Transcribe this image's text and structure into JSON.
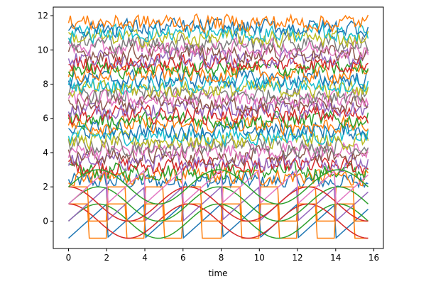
{
  "chart_data": {
    "type": "line",
    "title": "",
    "xlabel": "time",
    "ylabel": "",
    "xlim": [
      -0.8,
      16.5
    ],
    "ylim": [
      -1.6,
      12.5
    ],
    "xticks": [
      0,
      2,
      4,
      6,
      8,
      10,
      12,
      14,
      16
    ],
    "yticks": [
      0,
      2,
      4,
      6,
      8,
      10,
      12
    ],
    "grid": false,
    "legend": "none",
    "colors": [
      "#1f77b4",
      "#ff7f0e",
      "#2ca02c",
      "#d62728",
      "#9467bd",
      "#8c564b",
      "#e377c2",
      "#7f7f7f",
      "#bcbd22",
      "#17becf"
    ],
    "x_range": [
      0,
      15.7
    ],
    "n_points": 160,
    "structured_series": [
      {
        "kind": "sawtooth",
        "period": 2,
        "low": -1,
        "high": 1,
        "offset": 0,
        "color": "#1f77b4"
      },
      {
        "kind": "square",
        "period": 2,
        "low": -1,
        "high": 1,
        "offset": 0,
        "color": "#ff7f0e"
      },
      {
        "kind": "sine",
        "period": 6.28,
        "amplitude": 1,
        "offset": 0,
        "color": "#2ca02c"
      },
      {
        "kind": "cosine",
        "period": 6.28,
        "amplitude": 1,
        "offset": 0,
        "color": "#d62728"
      },
      {
        "kind": "sawtooth",
        "period": 2,
        "low": -1,
        "high": 1,
        "offset": 1,
        "color": "#9467bd"
      },
      {
        "kind": "square",
        "period": 2,
        "low": -1,
        "high": 1,
        "offset": 1,
        "color": "#ff7f0e"
      },
      {
        "kind": "sine",
        "period": 6.28,
        "amplitude": 1,
        "offset": 1,
        "color": "#2ca02c"
      },
      {
        "kind": "cosine",
        "period": 6.28,
        "amplitude": 1,
        "offset": 1,
        "color": "#d62728"
      },
      {
        "kind": "sawtooth",
        "period": 2,
        "low": -1,
        "high": 1,
        "offset": 2,
        "color": "#e377c2"
      },
      {
        "kind": "sine",
        "period": 6.28,
        "amplitude": 1,
        "offset": 2,
        "color": "#2ca02c"
      }
    ],
    "noisy_series": {
      "count": 32,
      "baseline_start": 2.3,
      "baseline_step": 0.3,
      "noise_amplitude": 0.5,
      "value_range": [
        2.0,
        12.2
      ]
    }
  }
}
